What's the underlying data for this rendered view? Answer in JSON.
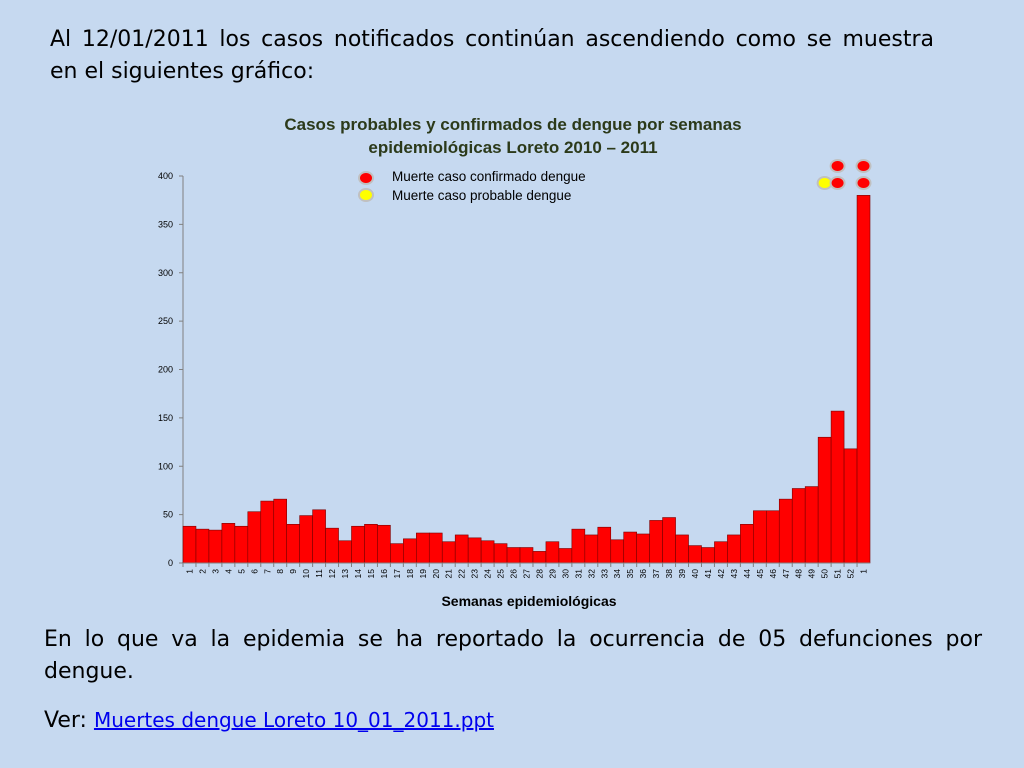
{
  "intro_text": "Al 12/01/2011 los casos notificados continúan ascendiendo como se muestra en el siguientes gráfico:",
  "outro_text": "En lo que va la epidemia se ha reportado la ocurrencia de 05 defunciones por dengue.",
  "see_label": "Ver:",
  "link_text": "Muertes dengue Loreto 10_01_2011.ppt",
  "colors": {
    "background": "#c6d9f0",
    "bar": "#ff0000",
    "title": "#2c3a1a",
    "death_confirmed": "#ff0000",
    "death_probable": "#ffff00"
  },
  "chart_data": {
    "type": "bar",
    "title": [
      "Casos probables y confirmados de dengue por semanas",
      "epidemiológicas  Loreto 2010 – 2011"
    ],
    "xlabel": "Semanas epidemiológicas",
    "ylabel": "",
    "ylim": [
      0,
      400
    ],
    "yticks": [
      "0",
      "50",
      "100",
      "150",
      "200",
      "250",
      "300",
      "350",
      "400"
    ],
    "grid": false,
    "legend_position": "top-center",
    "legend": [
      {
        "label": "Muerte caso confirmado dengue",
        "color": "#ff0000"
      },
      {
        "label": "Muerte caso probable dengue",
        "color": "#ffff00"
      }
    ],
    "categories": [
      "1",
      "2",
      "3",
      "4",
      "5",
      "6",
      "7",
      "8",
      "9",
      "10",
      "11",
      "12",
      "13",
      "14",
      "15",
      "16",
      "17",
      "18",
      "19",
      "20",
      "21",
      "22",
      "23",
      "24",
      "25",
      "26",
      "27",
      "28",
      "29",
      "30",
      "31",
      "32",
      "33",
      "34",
      "35",
      "36",
      "37",
      "38",
      "39",
      "40",
      "41",
      "42",
      "43",
      "44",
      "45",
      "46",
      "47",
      "48",
      "49",
      "50",
      "51",
      "52",
      "1"
    ],
    "series": [
      {
        "values": [
          38,
          35,
          34,
          41,
          38,
          53,
          64,
          66,
          40,
          49,
          55,
          36,
          23,
          38,
          40,
          39,
          20,
          25,
          31,
          31,
          22,
          29,
          26,
          23,
          20,
          16,
          16,
          12,
          22,
          15,
          35,
          29,
          37,
          24,
          32,
          30,
          44,
          47,
          29,
          18,
          16,
          22,
          29,
          40,
          54,
          54,
          66,
          77,
          79,
          130,
          157,
          118,
          380
        ]
      }
    ],
    "death_markers": [
      {
        "week_index": 49,
        "kind": "probable",
        "stack": 0
      },
      {
        "week_index": 50,
        "kind": "confirmed",
        "stack": 0
      },
      {
        "week_index": 50,
        "kind": "confirmed",
        "stack": 1
      },
      {
        "week_index": 52,
        "kind": "confirmed",
        "stack": 0
      },
      {
        "week_index": 52,
        "kind": "confirmed",
        "stack": 1
      }
    ]
  }
}
